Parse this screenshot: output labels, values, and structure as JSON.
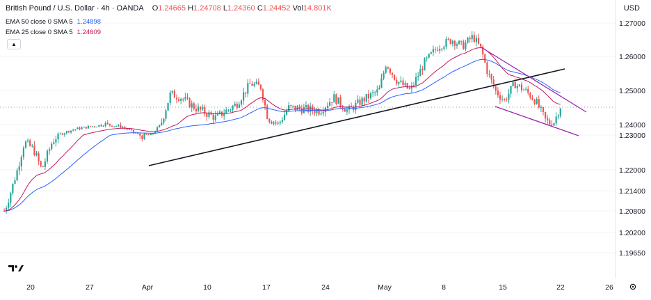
{
  "header": {
    "symbol": "British Pound / U.S. Dollar · 4h · OANDA",
    "o_label": "O",
    "o": "1.24665",
    "h_label": "H",
    "h": "1.24708",
    "l_label": "L",
    "l": "1.24360",
    "c_label": "C",
    "c": "1.24452",
    "vol_label": "Vol",
    "vol": "14.801K",
    "currency": "USD"
  },
  "indicators": [
    {
      "label": "EMA 50 close 0 SMA 5",
      "value": "1.24898",
      "color": "#2962ff"
    },
    {
      "label": "EMA 25 close 0 SMA 5",
      "value": "1.24609",
      "color": "#c2185b"
    }
  ],
  "collapse_icon": "chevron-up-icon",
  "logo": "tradingview-logo",
  "settings_icon": "gear-icon",
  "chart_data": {
    "type": "candlestick",
    "y_ticks": [
      "1.27000",
      "1.26000",
      "1.25000",
      "1.24000",
      "1.23000",
      "1.22000",
      "1.21400",
      "1.20800",
      "1.20200",
      "1.19650"
    ],
    "x_ticks": [
      "20",
      "27",
      "Apr",
      "10",
      "17",
      "24",
      "May",
      "8",
      "15",
      "22",
      "26"
    ],
    "last_price": 1.2445,
    "colors": {
      "up": "#26a69a",
      "down": "#ef5350",
      "ema50": "#2962ff",
      "ema25": "#c2185b",
      "trendline": "#131722",
      "channel": "#9c27b0"
    }
  }
}
